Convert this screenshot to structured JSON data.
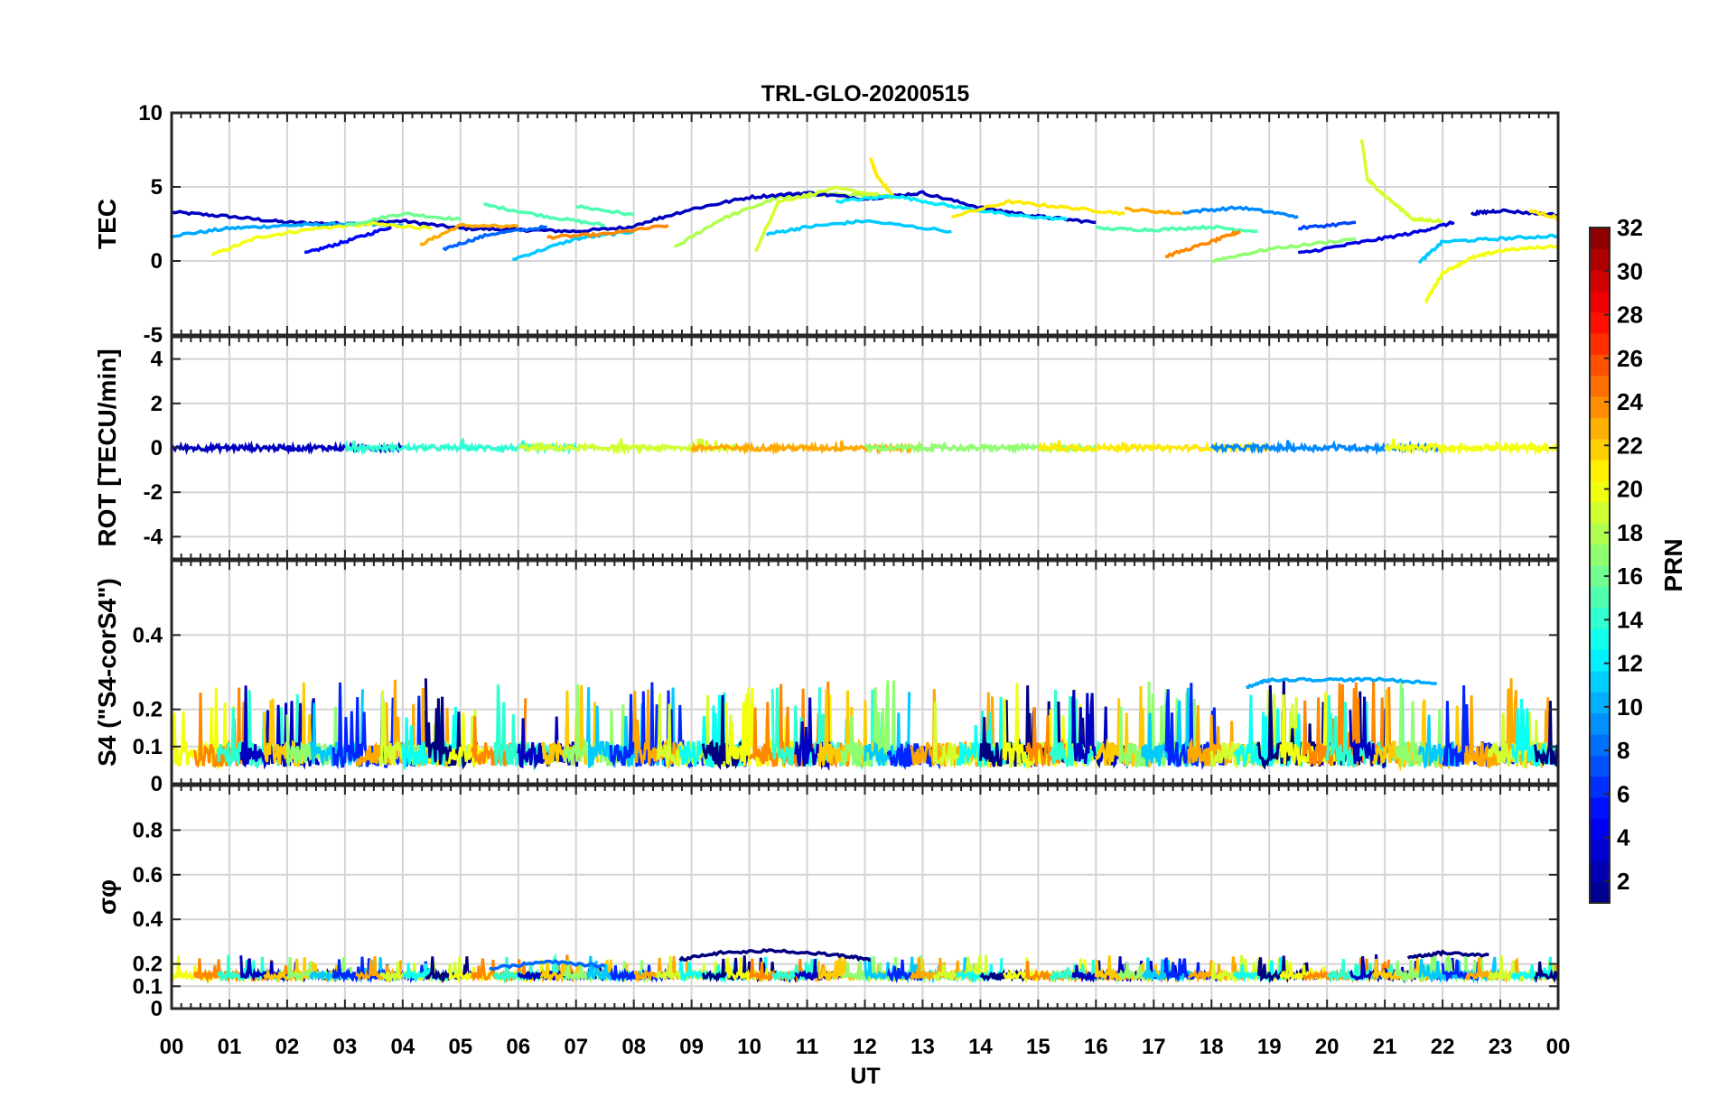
{
  "chart_data": {
    "type": "line",
    "title": "TRL-GLO-20200515",
    "xlabel": "UT",
    "x_ticks": [
      "00",
      "01",
      "02",
      "03",
      "04",
      "05",
      "06",
      "07",
      "08",
      "09",
      "10",
      "11",
      "12",
      "13",
      "14",
      "15",
      "16",
      "17",
      "18",
      "19",
      "20",
      "21",
      "22",
      "23",
      "00"
    ],
    "xlim": [
      0,
      24
    ],
    "colorbar": {
      "label": "PRN",
      "range": [
        1,
        32
      ],
      "ticks": [
        "2",
        "4",
        "6",
        "8",
        "10",
        "12",
        "14",
        "16",
        "18",
        "20",
        "22",
        "24",
        "26",
        "28",
        "30",
        "32"
      ],
      "colormap": "jet"
    },
    "panels": [
      {
        "id": "tec",
        "ylabel": "TEC",
        "ylim": [
          -5,
          10
        ],
        "yticks": [
          "-5",
          "0",
          "5",
          "10"
        ],
        "series": [
          {
            "prn": 3,
            "x": [
              0,
              1,
              2,
              3,
              4,
              5,
              6,
              7,
              8
            ],
            "y": [
              3.3,
              3.0,
              2.6,
              2.5,
              2.7,
              2.2,
              2.1,
              2.0,
              2.3
            ]
          },
          {
            "prn": 10,
            "x": [
              0,
              1,
              2,
              3,
              4
            ],
            "y": [
              1.7,
              2.2,
              2.4,
              2.5,
              2.4
            ]
          },
          {
            "prn": 20,
            "x": [
              0.7,
              1.5,
              2.5,
              3.5,
              4.5
            ],
            "y": [
              0.4,
              1.6,
              2.2,
              2.5,
              2.2
            ]
          },
          {
            "prn": 5,
            "x": [
              2.3,
              3,
              3.8
            ],
            "y": [
              0.5,
              1.3,
              2.3
            ]
          },
          {
            "prn": 16,
            "x": [
              3,
              4,
              5
            ],
            "y": [
              2.4,
              3.2,
              2.8
            ]
          },
          {
            "prn": 23,
            "x": [
              4.3,
              5,
              6
            ],
            "y": [
              1.1,
              2.4,
              2.3
            ]
          },
          {
            "prn": 8,
            "x": [
              4.7,
              5.5,
              6.5
            ],
            "y": [
              0.8,
              1.8,
              2.3
            ]
          },
          {
            "prn": 15,
            "x": [
              5.4,
              6.5,
              7.5
            ],
            "y": [
              3.8,
              3.0,
              2.4
            ]
          },
          {
            "prn": 11,
            "x": [
              5.9,
              7,
              8
            ],
            "y": [
              0.1,
              1.5,
              2.0
            ]
          },
          {
            "prn": 15,
            "x": [
              7,
              8
            ],
            "y": [
              3.7,
              3.1
            ]
          },
          {
            "prn": 24,
            "x": [
              6.5,
              7.5,
              8.6
            ],
            "y": [
              1.6,
              1.8,
              2.4
            ]
          },
          {
            "prn": 18,
            "x": [
              8.7,
              9.5,
              10.5,
              11.5,
              12.5
            ],
            "y": [
              0.9,
              2.8,
              4.3,
              4.5,
              4.3
            ]
          },
          {
            "prn": 3,
            "x": [
              8,
              9,
              10,
              11,
              12,
              13,
              14,
              15,
              16
            ],
            "y": [
              2.4,
              3.5,
              4.3,
              4.6,
              4.2,
              4.6,
              3.6,
              3.0,
              2.6
            ]
          },
          {
            "prn": 19,
            "x": [
              10.1,
              10.5,
              11.5,
              12.5
            ],
            "y": [
              0.6,
              4.0,
              4.9,
              4.3
            ]
          },
          {
            "prn": 21,
            "x": [
              12.1,
              12.2,
              12.5
            ],
            "y": [
              6.9,
              5.8,
              4.3
            ]
          },
          {
            "prn": 11,
            "x": [
              10.3,
              11,
              12,
              13.5
            ],
            "y": [
              1.8,
              2.3,
              2.7,
              2.0
            ]
          },
          {
            "prn": 12,
            "x": [
              11.5,
              12.5,
              13.5,
              14.5,
              15.5
            ],
            "y": [
              4.0,
              4.4,
              3.7,
              3.1,
              2.8
            ]
          },
          {
            "prn": 21,
            "x": [
              13.5,
              14.5,
              15.5,
              16.5
            ],
            "y": [
              3.0,
              4.0,
              3.6,
              3.2
            ]
          },
          {
            "prn": 23,
            "x": [
              16.5,
              17.5
            ],
            "y": [
              3.5,
              3.2
            ]
          },
          {
            "prn": 9,
            "x": [
              17.5,
              18.5,
              19.5
            ],
            "y": [
              3.3,
              3.6,
              3.0
            ]
          },
          {
            "prn": 15,
            "x": [
              16,
              17,
              18,
              18.8
            ],
            "y": [
              2.2,
              2.1,
              2.3,
              2.0
            ]
          },
          {
            "prn": 24,
            "x": [
              17.2,
              18,
              18.5
            ],
            "y": [
              0.3,
              1.3,
              2.0
            ]
          },
          {
            "prn": 17,
            "x": [
              18,
              19,
              20.5
            ],
            "y": [
              0.0,
              0.8,
              1.5
            ]
          },
          {
            "prn": 7,
            "x": [
              19.5,
              20.5
            ],
            "y": [
              2.2,
              2.6
            ]
          },
          {
            "prn": 4,
            "x": [
              19.5,
              20.5,
              21.5,
              22.2
            ],
            "y": [
              0.5,
              1.2,
              1.9,
              2.6
            ]
          },
          {
            "prn": 19,
            "x": [
              20.6,
              20.7,
              21,
              21.5,
              22
            ],
            "y": [
              8.2,
              5.5,
              4.4,
              2.8,
              2.7
            ]
          },
          {
            "prn": 3,
            "x": [
              22.5,
              23,
              24
            ],
            "y": [
              3.2,
              3.4,
              3.1
            ]
          },
          {
            "prn": 21,
            "x": [
              23.5,
              24
            ],
            "y": [
              3.4,
              2.9
            ]
          },
          {
            "prn": 11,
            "x": [
              21.6,
              22,
              23,
              24
            ],
            "y": [
              -0.1,
              1.3,
              1.5,
              1.7
            ]
          },
          {
            "prn": 20,
            "x": [
              21.7,
              22,
              22.5,
              23,
              24
            ],
            "y": [
              -2.8,
              -0.8,
              0.2,
              0.7,
              1.0
            ]
          }
        ]
      },
      {
        "id": "rot",
        "ylabel": "ROT [TECU/min]",
        "ylim": [
          -5,
          5
        ],
        "yticks": [
          "-4",
          "-2",
          "0",
          "2",
          "4"
        ],
        "value": 0.0
      },
      {
        "id": "s4",
        "ylabel": "S4 (\"S4-corS4\")",
        "ylim": [
          0,
          0.6
        ],
        "yticks": [
          "0",
          "0.1",
          "0.2",
          "0.4"
        ],
        "baseline_range": [
          0.02,
          0.17
        ],
        "series": [
          {
            "prn": 10,
            "x": [
              18.6,
              19,
              20,
              21,
              21.9
            ],
            "y": [
              0.26,
              0.28,
              0.28,
              0.28,
              0.27
            ]
          }
        ]
      },
      {
        "id": "sigma",
        "ylabel": "σφ",
        "ylim": [
          0,
          1
        ],
        "yticks": [
          "0",
          "0.1",
          "0.2",
          "0.4",
          "0.6",
          "0.8"
        ],
        "baseline_range": [
          0.12,
          0.19
        ],
        "series": [
          {
            "prn": 1,
            "x": [
              8.8,
              9.5,
              10.5,
              11.5,
              12.1
            ],
            "y": [
              0.22,
              0.25,
              0.26,
              0.24,
              0.22
            ]
          },
          {
            "prn": 1,
            "x": [
              21.4,
              22,
              22.8
            ],
            "y": [
              0.23,
              0.25,
              0.24
            ]
          },
          {
            "prn": 8,
            "x": [
              5.5,
              6.5,
              7.5
            ],
            "y": [
              0.18,
              0.21,
              0.19
            ]
          }
        ]
      }
    ]
  }
}
